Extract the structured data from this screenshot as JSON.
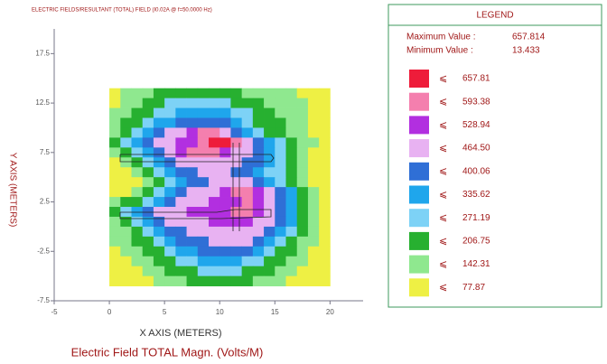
{
  "chart_data": {
    "type": "heatmap",
    "title": "ELECTRIC FIELDS/RESULTANT (TOTAL) FIELD (I0.02A @ f=50.0000 Hz)",
    "xlabel": "X AXIS (METERS)",
    "ylabel": "Y AXIS (METERS)",
    "caption": "Electric Field TOTAL Magn. (Volts/M)",
    "xlim": [
      -5,
      23
    ],
    "ylim": [
      -7.5,
      20
    ],
    "xticks": [
      -5,
      0,
      5,
      10,
      15,
      20
    ],
    "yticks": [
      -7.5,
      -2.5,
      2.5,
      7.5,
      12.5,
      17.5
    ],
    "x": [
      0.5,
      1.5,
      2.5,
      3.5,
      4.5,
      5.5,
      6.5,
      7.5,
      8.5,
      9.5,
      10.5,
      11.5,
      12.5,
      13.5,
      14.5,
      15.5,
      16.5,
      17.5,
      18.5,
      19.5
    ],
    "y": [
      13.5,
      12.5,
      11.5,
      10.5,
      9.5,
      8.5,
      7.5,
      6.5,
      5.5,
      4.5,
      3.5,
      2.5,
      1.5,
      0.5,
      -0.5,
      -1.5,
      -2.5,
      -3.5,
      -4.5,
      -5.5
    ],
    "z": [
      [
        45,
        110,
        110,
        110,
        175,
        175,
        175,
        175,
        175,
        175,
        175,
        175,
        110,
        110,
        110,
        110,
        110,
        45,
        45,
        45
      ],
      [
        45,
        110,
        110,
        175,
        175,
        240,
        240,
        240,
        240,
        240,
        240,
        175,
        175,
        175,
        110,
        110,
        110,
        110,
        45,
        45
      ],
      [
        110,
        110,
        175,
        175,
        240,
        240,
        305,
        305,
        305,
        305,
        305,
        240,
        240,
        175,
        175,
        110,
        110,
        110,
        45,
        45
      ],
      [
        110,
        175,
        175,
        240,
        305,
        305,
        370,
        370,
        370,
        370,
        370,
        305,
        240,
        175,
        175,
        175,
        110,
        110,
        45,
        45
      ],
      [
        110,
        175,
        240,
        305,
        370,
        430,
        430,
        495,
        560,
        560,
        430,
        370,
        305,
        240,
        175,
        175,
        110,
        110,
        45,
        45
      ],
      [
        175,
        240,
        305,
        370,
        430,
        430,
        495,
        495,
        560,
        625,
        625,
        560,
        430,
        370,
        305,
        240,
        175,
        110,
        110,
        45
      ],
      [
        110,
        175,
        240,
        305,
        370,
        430,
        495,
        560,
        560,
        560,
        495,
        430,
        430,
        370,
        305,
        240,
        175,
        110,
        45,
        45
      ],
      [
        45,
        110,
        175,
        240,
        305,
        370,
        430,
        430,
        430,
        430,
        430,
        430,
        370,
        370,
        305,
        240,
        175,
        110,
        45,
        45
      ],
      [
        45,
        45,
        110,
        175,
        240,
        305,
        370,
        370,
        430,
        430,
        430,
        370,
        370,
        305,
        240,
        240,
        175,
        110,
        45,
        45
      ],
      [
        45,
        45,
        45,
        110,
        175,
        240,
        305,
        370,
        370,
        430,
        430,
        430,
        430,
        370,
        305,
        240,
        175,
        110,
        45,
        45
      ],
      [
        45,
        45,
        110,
        175,
        240,
        305,
        370,
        430,
        430,
        430,
        495,
        560,
        560,
        495,
        430,
        370,
        305,
        175,
        110,
        45
      ],
      [
        110,
        175,
        175,
        240,
        305,
        370,
        430,
        430,
        430,
        495,
        495,
        495,
        560,
        495,
        430,
        370,
        305,
        175,
        110,
        45
      ],
      [
        175,
        240,
        305,
        370,
        430,
        430,
        430,
        495,
        495,
        495,
        495,
        560,
        560,
        495,
        430,
        370,
        305,
        175,
        110,
        45
      ],
      [
        110,
        175,
        240,
        305,
        370,
        430,
        430,
        430,
        430,
        495,
        495,
        495,
        495,
        430,
        430,
        370,
        305,
        175,
        110,
        45
      ],
      [
        110,
        110,
        175,
        240,
        305,
        370,
        370,
        430,
        430,
        430,
        430,
        430,
        430,
        430,
        370,
        305,
        240,
        175,
        110,
        45
      ],
      [
        110,
        110,
        175,
        175,
        240,
        305,
        370,
        370,
        370,
        430,
        430,
        430,
        430,
        370,
        305,
        240,
        175,
        110,
        110,
        45
      ],
      [
        45,
        110,
        110,
        175,
        175,
        240,
        305,
        305,
        370,
        370,
        370,
        370,
        370,
        305,
        240,
        175,
        175,
        110,
        45,
        45
      ],
      [
        45,
        45,
        110,
        110,
        175,
        175,
        240,
        240,
        305,
        305,
        305,
        305,
        240,
        240,
        175,
        175,
        110,
        110,
        45,
        45
      ],
      [
        45,
        45,
        45,
        110,
        110,
        175,
        175,
        175,
        240,
        240,
        240,
        240,
        175,
        175,
        175,
        110,
        110,
        45,
        45,
        45
      ],
      [
        45,
        45,
        45,
        45,
        110,
        110,
        110,
        175,
        175,
        175,
        175,
        175,
        175,
        110,
        110,
        110,
        45,
        45,
        45,
        45
      ]
    ],
    "legend": {
      "title": "LEGEND",
      "max_label": "Maximum Value :",
      "max_value": 657.814,
      "min_label": "Minimum Value :",
      "min_value": 13.433,
      "level_symbol": "⩽",
      "levels": [
        657.81,
        593.38,
        528.94,
        {
          "value": 464.5,
          "label": "464.50"
        },
        400.06,
        335.62,
        271.19,
        206.75,
        142.31,
        77.87
      ],
      "colors": [
        "#ee1c3a",
        "#f47fae",
        "#b22fe0",
        "#e8b2f2",
        "#2f6fd6",
        "#1fa6ec",
        "#7dd2f6",
        "#27b030",
        "#8fe88f",
        "#eef044"
      ]
    }
  }
}
